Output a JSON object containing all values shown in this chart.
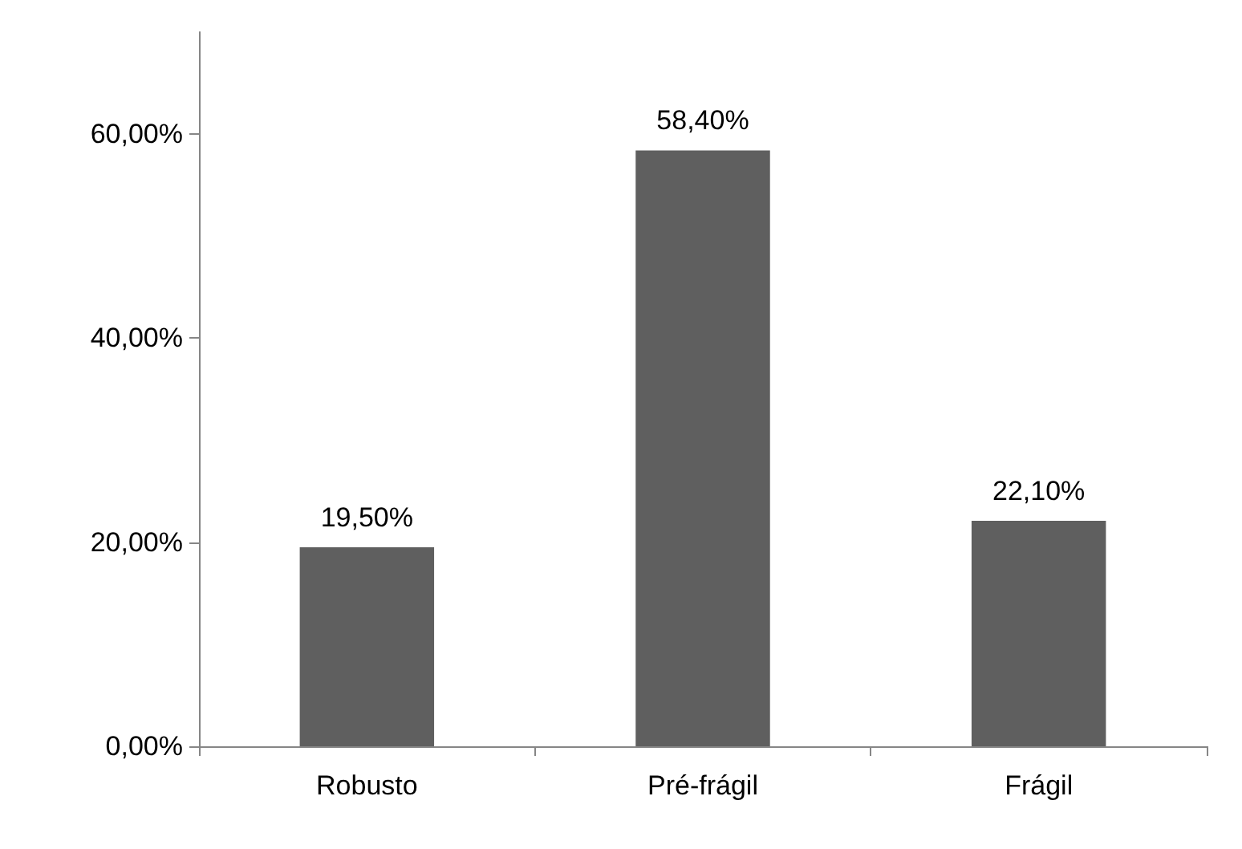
{
  "chart_data": {
    "type": "bar",
    "categories": [
      "Robusto",
      "Pré-frágil",
      "Frágil"
    ],
    "values": [
      19.5,
      58.4,
      22.1
    ],
    "color": "#5f5f5f",
    "value_labels": [
      "19,50%",
      "58,40%",
      "22,10%"
    ],
    "ylim": [
      0,
      70
    ],
    "yticks": [
      {
        "value": 0,
        "label": "0,00%"
      },
      {
        "value": 20,
        "label": "20,00%"
      },
      {
        "value": 40,
        "label": "40,00%"
      },
      {
        "value": 60,
        "label": "60,00%"
      }
    ],
    "grid": false
  }
}
